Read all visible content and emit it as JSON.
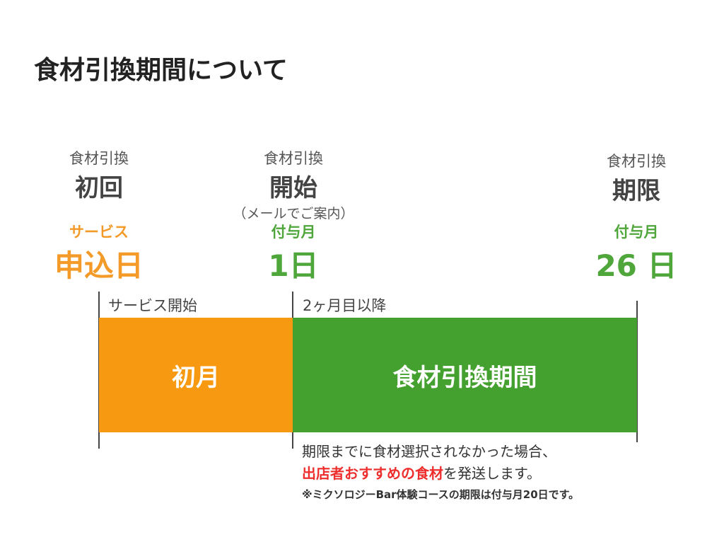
{
  "title": "食材引換期間について",
  "markers": {
    "first": {
      "line1": "食材引換",
      "line2": "初回"
    },
    "start": {
      "line1": "食材引換",
      "line2": "開始",
      "note": "（メールでご案内）"
    },
    "deadline": {
      "line1": "食材引換",
      "line2": "期限"
    }
  },
  "dates": {
    "apply": {
      "small": "サービス",
      "big": "申込日"
    },
    "start": {
      "small": "付与月",
      "big": "1日"
    },
    "deadline": {
      "small": "付与月",
      "big": "26 日"
    }
  },
  "periods": {
    "service_start": "サービス開始",
    "after_second_month": "2ヶ月目以降"
  },
  "bars": {
    "first_month": "初月",
    "exchange_period": "食材引換期間"
  },
  "notes": {
    "line1": "期限までに食材選択されなかった場合、",
    "line2_highlight": "出店者おすすめの食材",
    "line2_rest": "を発送します。",
    "line3": "※ミクソロジーBar体験コースの期限は付与月20日です。"
  },
  "colors": {
    "orange": "#f79a12",
    "green": "#45a12f",
    "red": "#ee2d2d"
  }
}
